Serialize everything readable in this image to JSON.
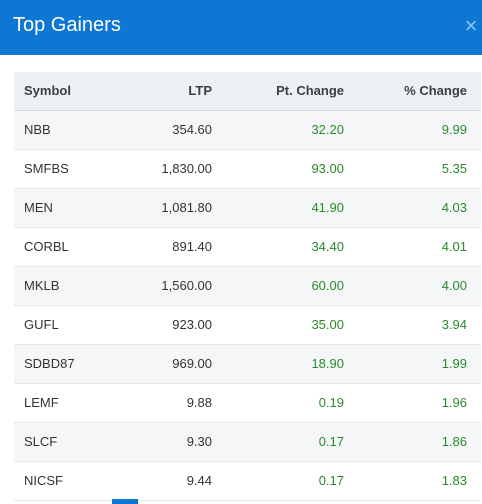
{
  "modal": {
    "title": "Top Gainers",
    "close_icon": "×"
  },
  "table": {
    "columns": [
      "Symbol",
      "LTP",
      "Pt. Change",
      "% Change"
    ],
    "rows": [
      {
        "symbol": "NBB",
        "ltp": "354.60",
        "pt_change": "32.20",
        "pct_change": "9.99"
      },
      {
        "symbol": "SMFBS",
        "ltp": "1,830.00",
        "pt_change": "93.00",
        "pct_change": "5.35"
      },
      {
        "symbol": "MEN",
        "ltp": "1,081.80",
        "pt_change": "41.90",
        "pct_change": "4.03"
      },
      {
        "symbol": "CORBL",
        "ltp": "891.40",
        "pt_change": "34.40",
        "pct_change": "4.01"
      },
      {
        "symbol": "MKLB",
        "ltp": "1,560.00",
        "pt_change": "60.00",
        "pct_change": "4.00"
      },
      {
        "symbol": "GUFL",
        "ltp": "923.00",
        "pt_change": "35.00",
        "pct_change": "3.94"
      },
      {
        "symbol": "SDBD87",
        "ltp": "969.00",
        "pt_change": "18.90",
        "pct_change": "1.99"
      },
      {
        "symbol": "LEMF",
        "ltp": "9.88",
        "pt_change": "0.19",
        "pct_change": "1.96"
      },
      {
        "symbol": "SLCF",
        "ltp": "9.30",
        "pt_change": "0.17",
        "pct_change": "1.86"
      },
      {
        "symbol": "NICSF",
        "ltp": "9.44",
        "pt_change": "0.17",
        "pct_change": "1.83"
      }
    ]
  },
  "colors": {
    "header_bg": "#0e77d4",
    "positive": "#2a8a2a"
  }
}
